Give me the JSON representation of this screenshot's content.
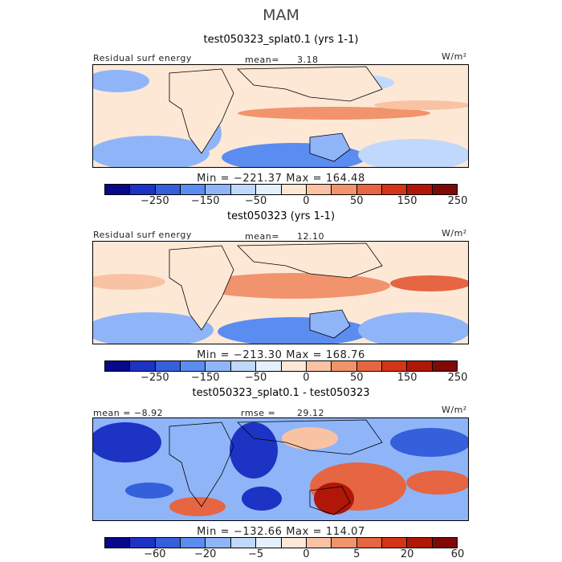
{
  "title": "MAM",
  "panels": [
    {
      "subtitle": "test050323_splat0.1 (yrs 1-1)",
      "header_left": "Residual surf energy",
      "header_center_label": "mean=",
      "header_center_value": "3.18",
      "units": "W/m²",
      "minmax": "Min = −221.37 Max = 164.48",
      "ticks": [
        "−250",
        "−150",
        "−50",
        "0",
        "50",
        "150",
        "250"
      ],
      "scheme": "full"
    },
    {
      "subtitle": "test050323 (yrs 1-1)",
      "header_left": "Residual surf energy",
      "header_center_label": "mean=",
      "header_center_value": "12.10",
      "units": "W/m²",
      "minmax": "Min = −213.30 Max = 168.76",
      "ticks": [
        "−250",
        "−150",
        "−50",
        "0",
        "50",
        "150",
        "250"
      ],
      "scheme": "full"
    },
    {
      "subtitle": "test050323_splat0.1 - test050323",
      "header_left": "mean =  −8.92",
      "header_center_label": "rmse =",
      "header_center_value": "29.12",
      "units": "W/m²",
      "minmax": "Min = −132.66 Max = 114.07",
      "ticks": [
        "−60",
        "−20",
        "−5",
        "0",
        "5",
        "20",
        "60"
      ],
      "scheme": "diff"
    }
  ],
  "colorbar_colors": [
    "#08088a",
    "#1d33c4",
    "#3560dc",
    "#5b8cf0",
    "#8fb5f8",
    "#c0d8fb",
    "#e6f0fd",
    "#fde8d6",
    "#f9c3a3",
    "#f1936c",
    "#e66542",
    "#d43418",
    "#b01708",
    "#7d0a05"
  ]
}
